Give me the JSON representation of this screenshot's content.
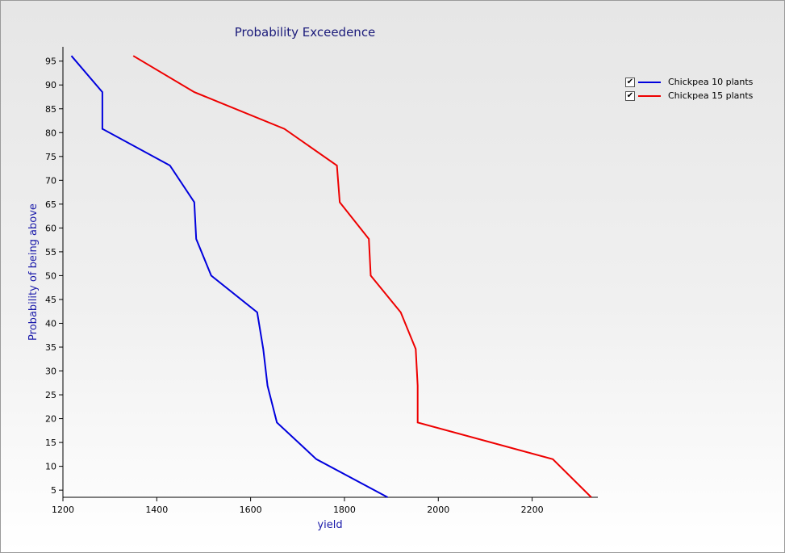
{
  "chart_data": {
    "type": "line",
    "title": "Probability Exceedence",
    "xlabel": "yield",
    "ylabel": "Probability of being above",
    "xlim": [
      1200,
      2340
    ],
    "ylim": [
      3.5,
      98
    ],
    "xticks": [
      1200,
      1400,
      1600,
      1800,
      2000,
      2200
    ],
    "yticks": [
      5,
      10,
      15,
      20,
      25,
      30,
      35,
      40,
      45,
      50,
      55,
      60,
      65,
      70,
      75,
      80,
      85,
      90,
      95
    ],
    "legend_position": "top-right",
    "series": [
      {
        "name": "Chickpea 10 plants",
        "color": "#0000dd",
        "checked": true,
        "points": [
          [
            1218,
            96.1
          ],
          [
            1284,
            88.5
          ],
          [
            1284,
            80.8
          ],
          [
            1428,
            73.1
          ],
          [
            1480,
            65.4
          ],
          [
            1484,
            57.7
          ],
          [
            1516,
            50.0
          ],
          [
            1614,
            42.3
          ],
          [
            1627,
            34.6
          ],
          [
            1636,
            26.9
          ],
          [
            1656,
            19.2
          ],
          [
            1740,
            11.5
          ],
          [
            1892,
            3.5
          ]
        ]
      },
      {
        "name": "Chickpea 15 plants",
        "color": "#ee0000",
        "checked": true,
        "points": [
          [
            1350,
            96.1
          ],
          [
            1480,
            88.5
          ],
          [
            1672,
            80.8
          ],
          [
            1784,
            73.1
          ],
          [
            1790,
            65.4
          ],
          [
            1852,
            57.7
          ],
          [
            1856,
            50.0
          ],
          [
            1920,
            42.3
          ],
          [
            1952,
            34.6
          ],
          [
            1956,
            26.9
          ],
          [
            1956,
            19.2
          ],
          [
            2244,
            11.5
          ],
          [
            2326,
            3.5
          ]
        ]
      }
    ]
  }
}
